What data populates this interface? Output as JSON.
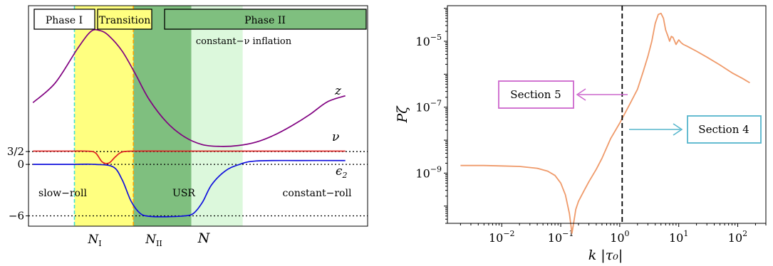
{
  "chart_data": [
    {
      "type": "line",
      "xlabel": "N",
      "ylabel": "",
      "phase_boxes": [
        {
          "label": "Phase I"
        },
        {
          "label": "Transition"
        },
        {
          "label": "Phase II"
        }
      ],
      "bands": [
        {
          "name": "transition",
          "x": [
            0.93,
            2.25
          ],
          "color": "#ffff80"
        },
        {
          "name": "usr",
          "x": [
            2.25,
            3.55
          ],
          "color": "#7fbf7f",
          "label": "USR"
        },
        {
          "name": "constant-nu",
          "x": [
            3.55,
            4.7
          ],
          "color": "#dcf8dc",
          "label": "constant−ν inflation"
        }
      ],
      "region_labels": [
        "slow−roll",
        "constant−roll"
      ],
      "vlines": [
        {
          "name": "N_I",
          "label": "N",
          "sub": "I",
          "x": 0.93,
          "color": "#40e0d0"
        },
        {
          "name": "N_II",
          "label": "N",
          "sub": "II",
          "x": 2.25,
          "color": "#ffa500"
        }
      ],
      "hlines": [
        {
          "value": 1.5,
          "label": "3/2"
        },
        {
          "value": 0,
          "label": "0"
        },
        {
          "value": -6,
          "label": "−6"
        }
      ],
      "yticks": [
        {
          "value": 1.5,
          "label": "3/2"
        },
        {
          "value": 0,
          "label": "0"
        },
        {
          "value": -6,
          "label": "−6"
        }
      ],
      "xlim": [
        -0.1,
        7.5
      ],
      "ylim": [
        -7.2,
        18.5
      ],
      "series": [
        {
          "name": "z",
          "sym": "z",
          "color": "#800080",
          "x": [
            0,
            0.5,
            1.0,
            1.3,
            1.5,
            1.7,
            2.0,
            2.3,
            2.6,
            3.0,
            3.4,
            3.8,
            4.2,
            4.6,
            5.0,
            5.4,
            5.8,
            6.2,
            6.6,
            7.0
          ],
          "y": [
            7.2,
            9.5,
            13.5,
            15.5,
            15.6,
            15.0,
            13.2,
            10.5,
            7.6,
            4.9,
            3.2,
            2.3,
            2.1,
            2.2,
            2.6,
            3.4,
            4.5,
            5.8,
            7.3,
            8.0
          ]
        },
        {
          "name": "nu",
          "sym": "ν",
          "color": "#dd2222",
          "x": [
            0,
            0.8,
            1.2,
            1.4,
            1.55,
            1.7,
            1.85,
            2.0,
            2.3,
            3.0,
            4.0,
            5.0,
            6.0,
            7.0
          ],
          "y": [
            1.55,
            1.55,
            1.55,
            1.35,
            0.3,
            0.15,
            0.9,
            1.45,
            1.55,
            1.55,
            1.55,
            1.55,
            1.55,
            1.55
          ]
        },
        {
          "name": "epsilon2",
          "sym": "ϵ",
          "sym_sub": "2",
          "color": "#1010dd",
          "x": [
            0,
            0.8,
            1.4,
            1.8,
            2.0,
            2.2,
            2.4,
            2.6,
            3.0,
            3.4,
            3.6,
            3.8,
            4.0,
            4.3,
            4.6,
            5.0,
            6.0,
            7.0
          ],
          "y": [
            0.0,
            0.0,
            0.0,
            -0.3,
            -1.8,
            -4.3,
            -5.7,
            -6.05,
            -6.1,
            -6.0,
            -5.7,
            -4.4,
            -2.4,
            -0.8,
            -0.05,
            0.4,
            0.45,
            0.45
          ]
        }
      ]
    },
    {
      "type": "line",
      "xlabel": "k |τ₀|",
      "ylabel": "Pζ",
      "x_scale": "log",
      "y_scale": "log",
      "xlim": [
        0.0012,
        300
      ],
      "ylim": [
        3e-11,
        0.00012
      ],
      "xticks": [
        0.01,
        0.1,
        1,
        10,
        100
      ],
      "yticks": [
        1e-09,
        1e-07,
        1e-05
      ],
      "vline": {
        "x": 1.1,
        "style": "dashed",
        "color": "#000000"
      },
      "annotations": [
        {
          "text": "Section 5",
          "color": "#cc66cc",
          "arrow": "left"
        },
        {
          "text": "Section 4",
          "color": "#55b5cc",
          "arrow": "right"
        }
      ],
      "series": [
        {
          "name": "P_zeta",
          "color": "#ef9a6a",
          "x": [
            0.002,
            0.005,
            0.01,
            0.02,
            0.04,
            0.06,
            0.08,
            0.1,
            0.12,
            0.14,
            0.155,
            0.165,
            0.18,
            0.2,
            0.25,
            0.3,
            0.4,
            0.5,
            0.7,
            1.0,
            1.5,
            2.0,
            2.5,
            3.0,
            3.5,
            4.0,
            4.5,
            5.0,
            5.5,
            6.0,
            6.5,
            7.0,
            7.5,
            8.0,
            9.0,
            10.0,
            11.0,
            12.0,
            14.0,
            20.0,
            30.0,
            50.0,
            80.0,
            120.0,
            160.0
          ],
          "y": [
            1.7e-09,
            1.7e-09,
            1.65e-09,
            1.6e-09,
            1.4e-09,
            1.15e-09,
            8.5e-10,
            5e-10,
            2.2e-10,
            6e-11,
            1.5e-11,
            3e-11,
            8e-11,
            1.4e-10,
            3e-10,
            5.5e-10,
            1.3e-09,
            2.8e-09,
            1.1e-08,
            3.3e-08,
            1.3e-07,
            3.5e-07,
            1.2e-06,
            3.5e-06,
            1e-05,
            3.5e-05,
            6.5e-05,
            7e-05,
            5e-05,
            2.2e-05,
            1.5e-05,
            1e-05,
            1.4e-05,
            1.3e-05,
            8e-06,
            1.1e-05,
            9e-06,
            8e-06,
            7e-06,
            5e-06,
            3.3e-06,
            1.9e-06,
            1.1e-06,
            7.5e-07,
            5.5e-07
          ]
        }
      ]
    }
  ]
}
